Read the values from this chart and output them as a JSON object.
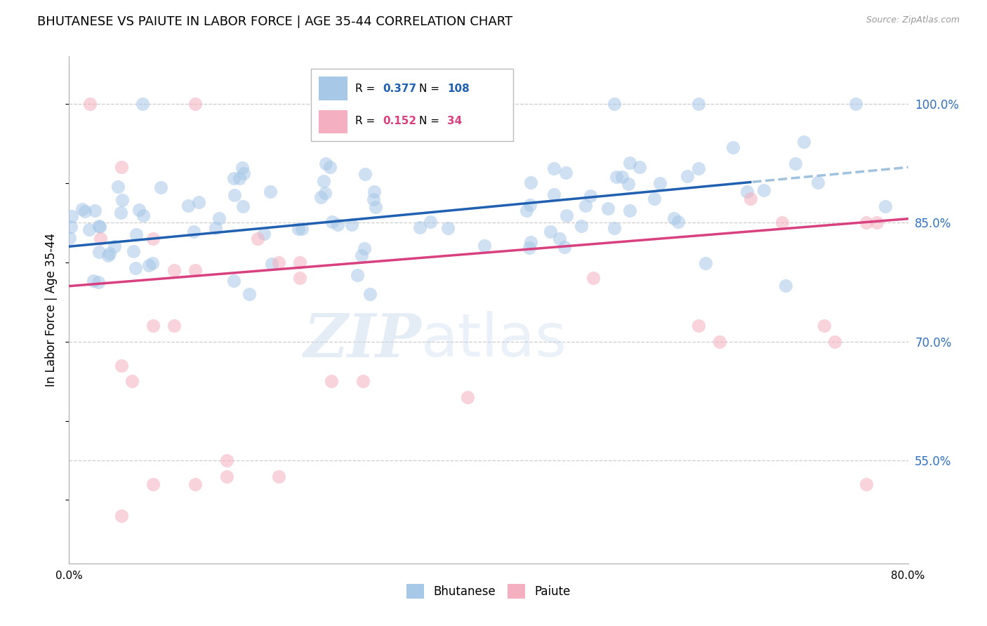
{
  "title": "BHUTANESE VS PAIUTE IN LABOR FORCE | AGE 35-44 CORRELATION CHART",
  "source": "Source: ZipAtlas.com",
  "ylabel": "In Labor Force | Age 35-44",
  "right_yticks": [
    55.0,
    70.0,
    85.0,
    100.0
  ],
  "bhutanese_R": 0.377,
  "bhutanese_N": 108,
  "paiute_R": 0.152,
  "paiute_N": 34,
  "blue_color": "#a8c8e8",
  "pink_color": "#f4b0c0",
  "trend_blue": "#2060b0",
  "trend_pink": "#d84080",
  "trend_dashed_blue": "#90b8d8",
  "watermark_text": "ZIPatlas",
  "x_min": 0.0,
  "x_max": 80.0,
  "y_min": 42.0,
  "y_max": 106.0,
  "legend_R_blue": "0.377",
  "legend_N_blue": "108",
  "legend_R_pink": "0.152",
  "legend_N_pink": "34",
  "blue_trend_y0": 82.0,
  "blue_trend_y80": 92.0,
  "pink_trend_y0": 77.0,
  "pink_trend_y80": 85.5,
  "solid_end_x": 65.0
}
